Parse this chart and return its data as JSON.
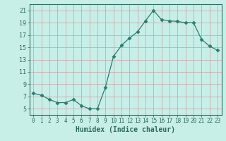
{
  "x": [
    0,
    1,
    2,
    3,
    4,
    5,
    6,
    7,
    8,
    9,
    10,
    11,
    12,
    13,
    14,
    15,
    16,
    17,
    18,
    19,
    20,
    21,
    22,
    23
  ],
  "y": [
    7.5,
    7.2,
    6.5,
    6.0,
    6.0,
    6.5,
    5.5,
    5.0,
    5.0,
    8.5,
    13.5,
    15.3,
    16.5,
    17.5,
    19.3,
    21.0,
    19.5,
    19.3,
    19.2,
    19.0,
    19.0,
    16.3,
    15.2,
    14.5
  ],
  "line_color": "#2d7b6e",
  "marker": "D",
  "marker_size": 2.5,
  "bg_color": "#c8eee8",
  "grid_color": "#c8a0a0",
  "xlabel": "Humidex (Indice chaleur)",
  "ylim": [
    4,
    22
  ],
  "xlim": [
    -0.5,
    23.5
  ],
  "yticks": [
    5,
    7,
    9,
    11,
    13,
    15,
    17,
    19,
    21
  ],
  "xticks": [
    0,
    1,
    2,
    3,
    4,
    5,
    6,
    7,
    8,
    9,
    10,
    11,
    12,
    13,
    14,
    15,
    16,
    17,
    18,
    19,
    20,
    21,
    22,
    23
  ],
  "tick_color": "#2d6b5e",
  "spine_color": "#2d6b5e",
  "xlabel_color": "#2d6b5e",
  "xlabel_fontsize": 7,
  "tick_fontsize": 5.5,
  "ytick_fontsize": 6
}
